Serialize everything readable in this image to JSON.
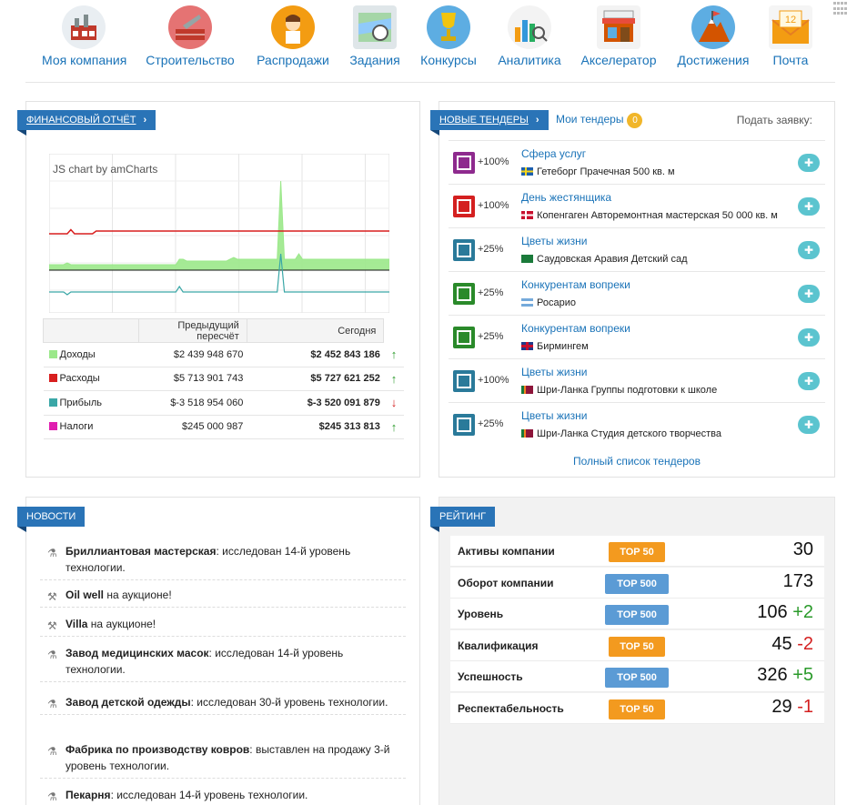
{
  "nav": {
    "items": [
      {
        "label": "Моя компания",
        "icon": "factory-icon"
      },
      {
        "label": "Строительство",
        "icon": "trowel-icon"
      },
      {
        "label": "Распродажи",
        "icon": "seller-icon"
      },
      {
        "label": "Задания",
        "icon": "map-compass-icon"
      },
      {
        "label": "Конкурсы",
        "icon": "trophy-icon"
      },
      {
        "label": "Аналитика",
        "icon": "analytics-icon"
      },
      {
        "label": "Акселератор",
        "icon": "shop-icon"
      },
      {
        "label": "Достижения",
        "icon": "achievements-icon"
      },
      {
        "label": "Почта",
        "icon": "mail-icon",
        "badge": "12"
      }
    ]
  },
  "finance": {
    "title": "ФИНАНСОВЫЙ ОТЧЁТ",
    "chart_credit": "JS chart by amCharts",
    "col_prev": "Предыдущий пересчёт",
    "col_today": "Сегодня",
    "rows": [
      {
        "label": "Доходы",
        "color": "#9be88a",
        "prev": "$2 439 948 670",
        "today": "$2 452 843 186",
        "trend": "↑"
      },
      {
        "label": "Расходы",
        "color": "#d81f1f",
        "prev": "$5 713 901 743",
        "today": "$5 727 621 252",
        "trend": "↑"
      },
      {
        "label": "Прибыль",
        "color": "#3aa7a7",
        "prev": "$-3 518 954 060",
        "today": "$-3 520 091 879",
        "trend": "↓"
      },
      {
        "label": "Налоги",
        "color": "#e01fb0",
        "prev": "$245 000 987",
        "today": "$245 313 813",
        "trend": "↑"
      }
    ]
  },
  "chart_data": {
    "type": "line",
    "series": [
      {
        "name": "Доходы",
        "color": "#9be88a",
        "values": [
          2.3,
          2.3,
          2.3,
          2.3,
          2.3,
          2.35,
          2.3,
          2.3,
          2.3,
          2.3,
          2.3,
          2.3,
          2.3,
          2.3,
          2.3,
          2.3,
          2.3,
          2.3,
          2.3,
          2.3,
          2.3,
          2.3,
          2.3,
          2.3,
          2.3,
          2.3,
          2.3,
          2.3,
          2.3,
          2.3,
          2.3,
          2.3,
          2.3,
          2.3,
          2.3,
          2.3,
          2.45,
          2.45,
          2.4,
          2.4,
          2.4,
          2.4,
          2.4,
          2.4,
          2.4,
          2.4,
          2.4,
          2.4,
          2.4,
          2.4,
          2.45,
          2.5,
          2.45,
          2.45,
          2.45,
          2.45,
          2.45,
          2.45,
          2.45,
          2.45,
          2.45,
          2.45,
          2.45,
          2.45,
          2.45,
          2.45,
          2.45,
          2.45,
          2.45,
          2.6,
          2.45,
          2.45,
          2.45,
          2.45,
          2.45,
          2.45,
          2.45,
          2.45,
          2.45,
          2.45,
          2.45,
          2.45,
          2.45,
          2.45,
          2.45,
          2.45,
          2.45,
          2.45,
          2.45,
          2.45,
          2.45,
          2.45,
          2.45,
          2.45,
          2.45
        ]
      },
      {
        "name": "Расходы",
        "color": "#d81f1f",
        "values": [
          5.7,
          5.7,
          5.7,
          5.7,
          5.7,
          5.7,
          5.73,
          5.7,
          5.7,
          5.7,
          5.7,
          5.7,
          5.7,
          5.72,
          5.72,
          5.72,
          5.72,
          5.72,
          5.72,
          5.72,
          5.72,
          5.72,
          5.72,
          5.72,
          5.72,
          5.72,
          5.72,
          5.72,
          5.72,
          5.72,
          5.72,
          5.72,
          5.72,
          5.72,
          5.72,
          5.72,
          5.72,
          5.72,
          5.72,
          5.72,
          5.72,
          5.72,
          5.72,
          5.72,
          5.72,
          5.72,
          5.72,
          5.72,
          5.72,
          5.72,
          5.72,
          5.72,
          5.72,
          5.72,
          5.72,
          5.72,
          5.72,
          5.72,
          5.72,
          5.72,
          5.72,
          5.72,
          5.72,
          5.72,
          5.72,
          5.72,
          5.72,
          5.72,
          5.72,
          5.72,
          5.72,
          5.72,
          5.72,
          5.72,
          5.72,
          5.72,
          5.72,
          5.72,
          5.72,
          5.72,
          5.72,
          5.72,
          5.72,
          5.72,
          5.72,
          5.72,
          5.72,
          5.72,
          5.72,
          5.72,
          5.72,
          5.72,
          5.72,
          5.72,
          5.72
        ]
      },
      {
        "name": "Прибыль",
        "color": "#3aa7a7",
        "values": [
          -3.4,
          -3.4,
          -3.4,
          -3.4,
          -3.4,
          -3.45,
          -3.4,
          -3.4,
          -3.4,
          -3.4,
          -3.4,
          -3.4,
          -3.4,
          -3.4,
          -3.4,
          -3.4,
          -3.4,
          -3.4,
          -3.4,
          -3.4,
          -3.4,
          -3.4,
          -3.4,
          -3.4,
          -3.4,
          -3.4,
          -3.4,
          -3.4,
          -3.4,
          -3.4,
          -3.4,
          -3.4,
          -3.4,
          -3.4,
          -3.4,
          -3.4,
          -3.3,
          -3.4,
          -3.4,
          -3.4,
          -3.4,
          -3.4,
          -3.4,
          -3.4,
          -3.4,
          -3.4,
          -3.4,
          -3.4,
          -3.4,
          -3.4,
          -3.4,
          -3.4,
          -3.4,
          -3.4,
          -3.4,
          -3.4,
          -3.4,
          -3.4,
          -3.4,
          -3.4,
          -3.4,
          -3.4,
          -3.4,
          -3.4,
          -3.4,
          -3.4,
          -3.4,
          -3.4,
          -3.4,
          -3.4,
          -3.4,
          -3.4,
          -3.4,
          -3.4,
          -3.4,
          -3.4,
          -3.4,
          -3.4,
          -3.4,
          -3.4,
          -3.4,
          -3.4,
          -3.4,
          -3.4,
          -3.4,
          -3.4,
          -3.4,
          -3.4,
          -3.4,
          -3.4,
          -3.4,
          -3.4,
          -3.4,
          -3.4,
          -3.4
        ]
      },
      {
        "name": "Налоги",
        "color": "#e01fb0",
        "values": []
      }
    ],
    "spike": {
      "series": "Доходы",
      "index": 64,
      "value": 6.5
    },
    "spike_profit": {
      "series": "Прибыль",
      "index": 64,
      "value": 0.5
    },
    "grid": true
  },
  "tenders": {
    "title": "НОВЫЕ ТЕНДЕРЫ",
    "mine_label": "Мои тендеры",
    "mine_count": "0",
    "apply_label": "Подать заявку:",
    "items": [
      {
        "pct": "+100%",
        "name": "Сфера услуг",
        "loc": "Гетеборг Прачечная 500 кв. м",
        "icon_color": "#8e2a8e",
        "flag": "se"
      },
      {
        "pct": "+100%",
        "name": "День жестянщика",
        "loc": "Копенгаген Авторемонтная мастерская 50 000 кв. м",
        "icon_color": "#d42020",
        "flag": "dk"
      },
      {
        "pct": "+25%",
        "name": "Цветы жизни",
        "loc": "Саудовская Аравия Детский сад",
        "icon_color": "#2a7a9a",
        "flag": "sa"
      },
      {
        "pct": "+25%",
        "name": "Конкурентам вопреки",
        "loc": "Росарио",
        "icon_color": "#2a8a2a",
        "flag": "ar"
      },
      {
        "pct": "+25%",
        "name": "Конкурентам вопреки",
        "loc": "Бирмингем",
        "icon_color": "#2a8a2a",
        "flag": "gb"
      },
      {
        "pct": "+100%",
        "name": "Цветы жизни",
        "loc": "Шри-Ланка Группы подготовки к школе",
        "icon_color": "#2a7a9a",
        "flag": "lk"
      },
      {
        "pct": "+25%",
        "name": "Цветы жизни",
        "loc": "Шри-Ланка Студия детского творчества",
        "icon_color": "#2a7a9a",
        "flag": "lk"
      }
    ],
    "full_list": "Полный список тендеров"
  },
  "news": {
    "title": "НОВОСТИ",
    "items": [
      {
        "bold": "Бриллиантовая мастерская",
        "text": ": исследован 14-й уровень технологии.",
        "icon": "flask-icon"
      },
      {
        "bold": "Oil well",
        "text": " на аукционе!",
        "icon": "hammer-icon"
      },
      {
        "bold": "Villa",
        "text": " на аукционе!",
        "icon": "hammer-icon"
      },
      {
        "bold": "Завод медицинских масок",
        "text": ": исследован 14-й уровень технологии.",
        "icon": "flask-icon"
      },
      {
        "bold": "Завод детской одежды",
        "text": ": исследован 30-й уровень технологии.",
        "icon": "flask-icon"
      },
      {
        "bold": "Фабрика по производству ковров",
        "text": ": выставлен на продажу 3-й уровень технологии.",
        "icon": "flask-icon"
      },
      {
        "bold": "Пекарня",
        "text": ": исследован 14-й уровень технологии.",
        "icon": "flask-icon"
      }
    ]
  },
  "rating": {
    "title": "РЕЙТИНГ",
    "rows": [
      {
        "label": "Активы компании",
        "badge": "TOP 50",
        "badge_color": "#f39a1f",
        "value": "30",
        "delta": "",
        "delta_sign": ""
      },
      {
        "label": "Оборот компании",
        "badge": "TOP 500",
        "badge_color": "#5b9bd5",
        "value": "173",
        "delta": "",
        "delta_sign": ""
      },
      {
        "label": "Уровень",
        "badge": "TOP 500",
        "badge_color": "#5b9bd5",
        "value": "106",
        "delta": "+2",
        "delta_sign": "pos"
      },
      {
        "label": "Квалификация",
        "badge": "TOP 50",
        "badge_color": "#f39a1f",
        "value": "45",
        "delta": "-2",
        "delta_sign": "neg"
      },
      {
        "label": "Успешность",
        "badge": "TOP 500",
        "badge_color": "#5b9bd5",
        "value": "326",
        "delta": "+5",
        "delta_sign": "pos"
      },
      {
        "label": "Респектабельность",
        "badge": "TOP 50",
        "badge_color": "#f39a1f",
        "value": "29",
        "delta": "-1",
        "delta_sign": "neg"
      }
    ]
  }
}
